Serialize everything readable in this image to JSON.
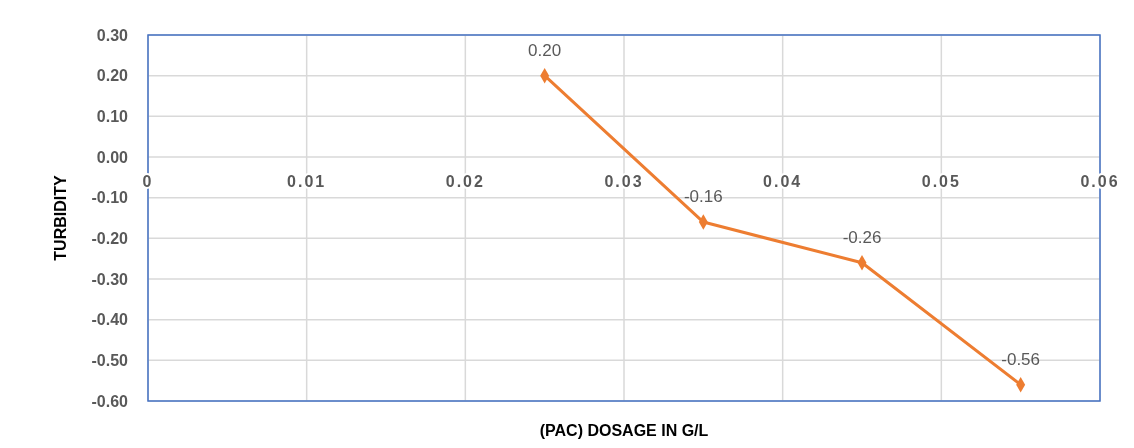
{
  "chart_data": {
    "type": "line",
    "xlabel": "(PAC) DOSAGE IN G/L",
    "ylabel": "TURBIDITY",
    "x": [
      0.025,
      0.035,
      0.045,
      0.055
    ],
    "series": [
      {
        "color": "#ed7d31",
        "values": [
          0.2,
          -0.16,
          -0.26,
          -0.56
        ],
        "value_labels": [
          "0.20",
          "-0.16",
          "-0.26",
          "-0.56"
        ]
      }
    ],
    "xlim": [
      0,
      0.06
    ],
    "xticks": [
      0,
      0.01,
      0.02,
      0.03,
      0.04,
      0.05,
      0.06
    ],
    "ylim": [
      -0.6,
      0.3
    ],
    "yticks": [
      {
        "value": 0.3,
        "label": "0.30"
      },
      {
        "value": 0.2,
        "label": "0.20"
      },
      {
        "value": 0.1,
        "label": "0.10"
      },
      {
        "value": 0,
        "label": "0.00"
      },
      {
        "value": -0.1,
        "label": "-0.10"
      },
      {
        "value": -0.2,
        "label": "-0.20"
      },
      {
        "value": -0.3,
        "label": "-0.30"
      },
      {
        "value": -0.4,
        "label": "-0.40"
      },
      {
        "value": -0.5,
        "label": "-0.50"
      },
      {
        "value": -0.6,
        "label": "-0.60"
      }
    ],
    "grid": true,
    "marker": "diamond"
  }
}
